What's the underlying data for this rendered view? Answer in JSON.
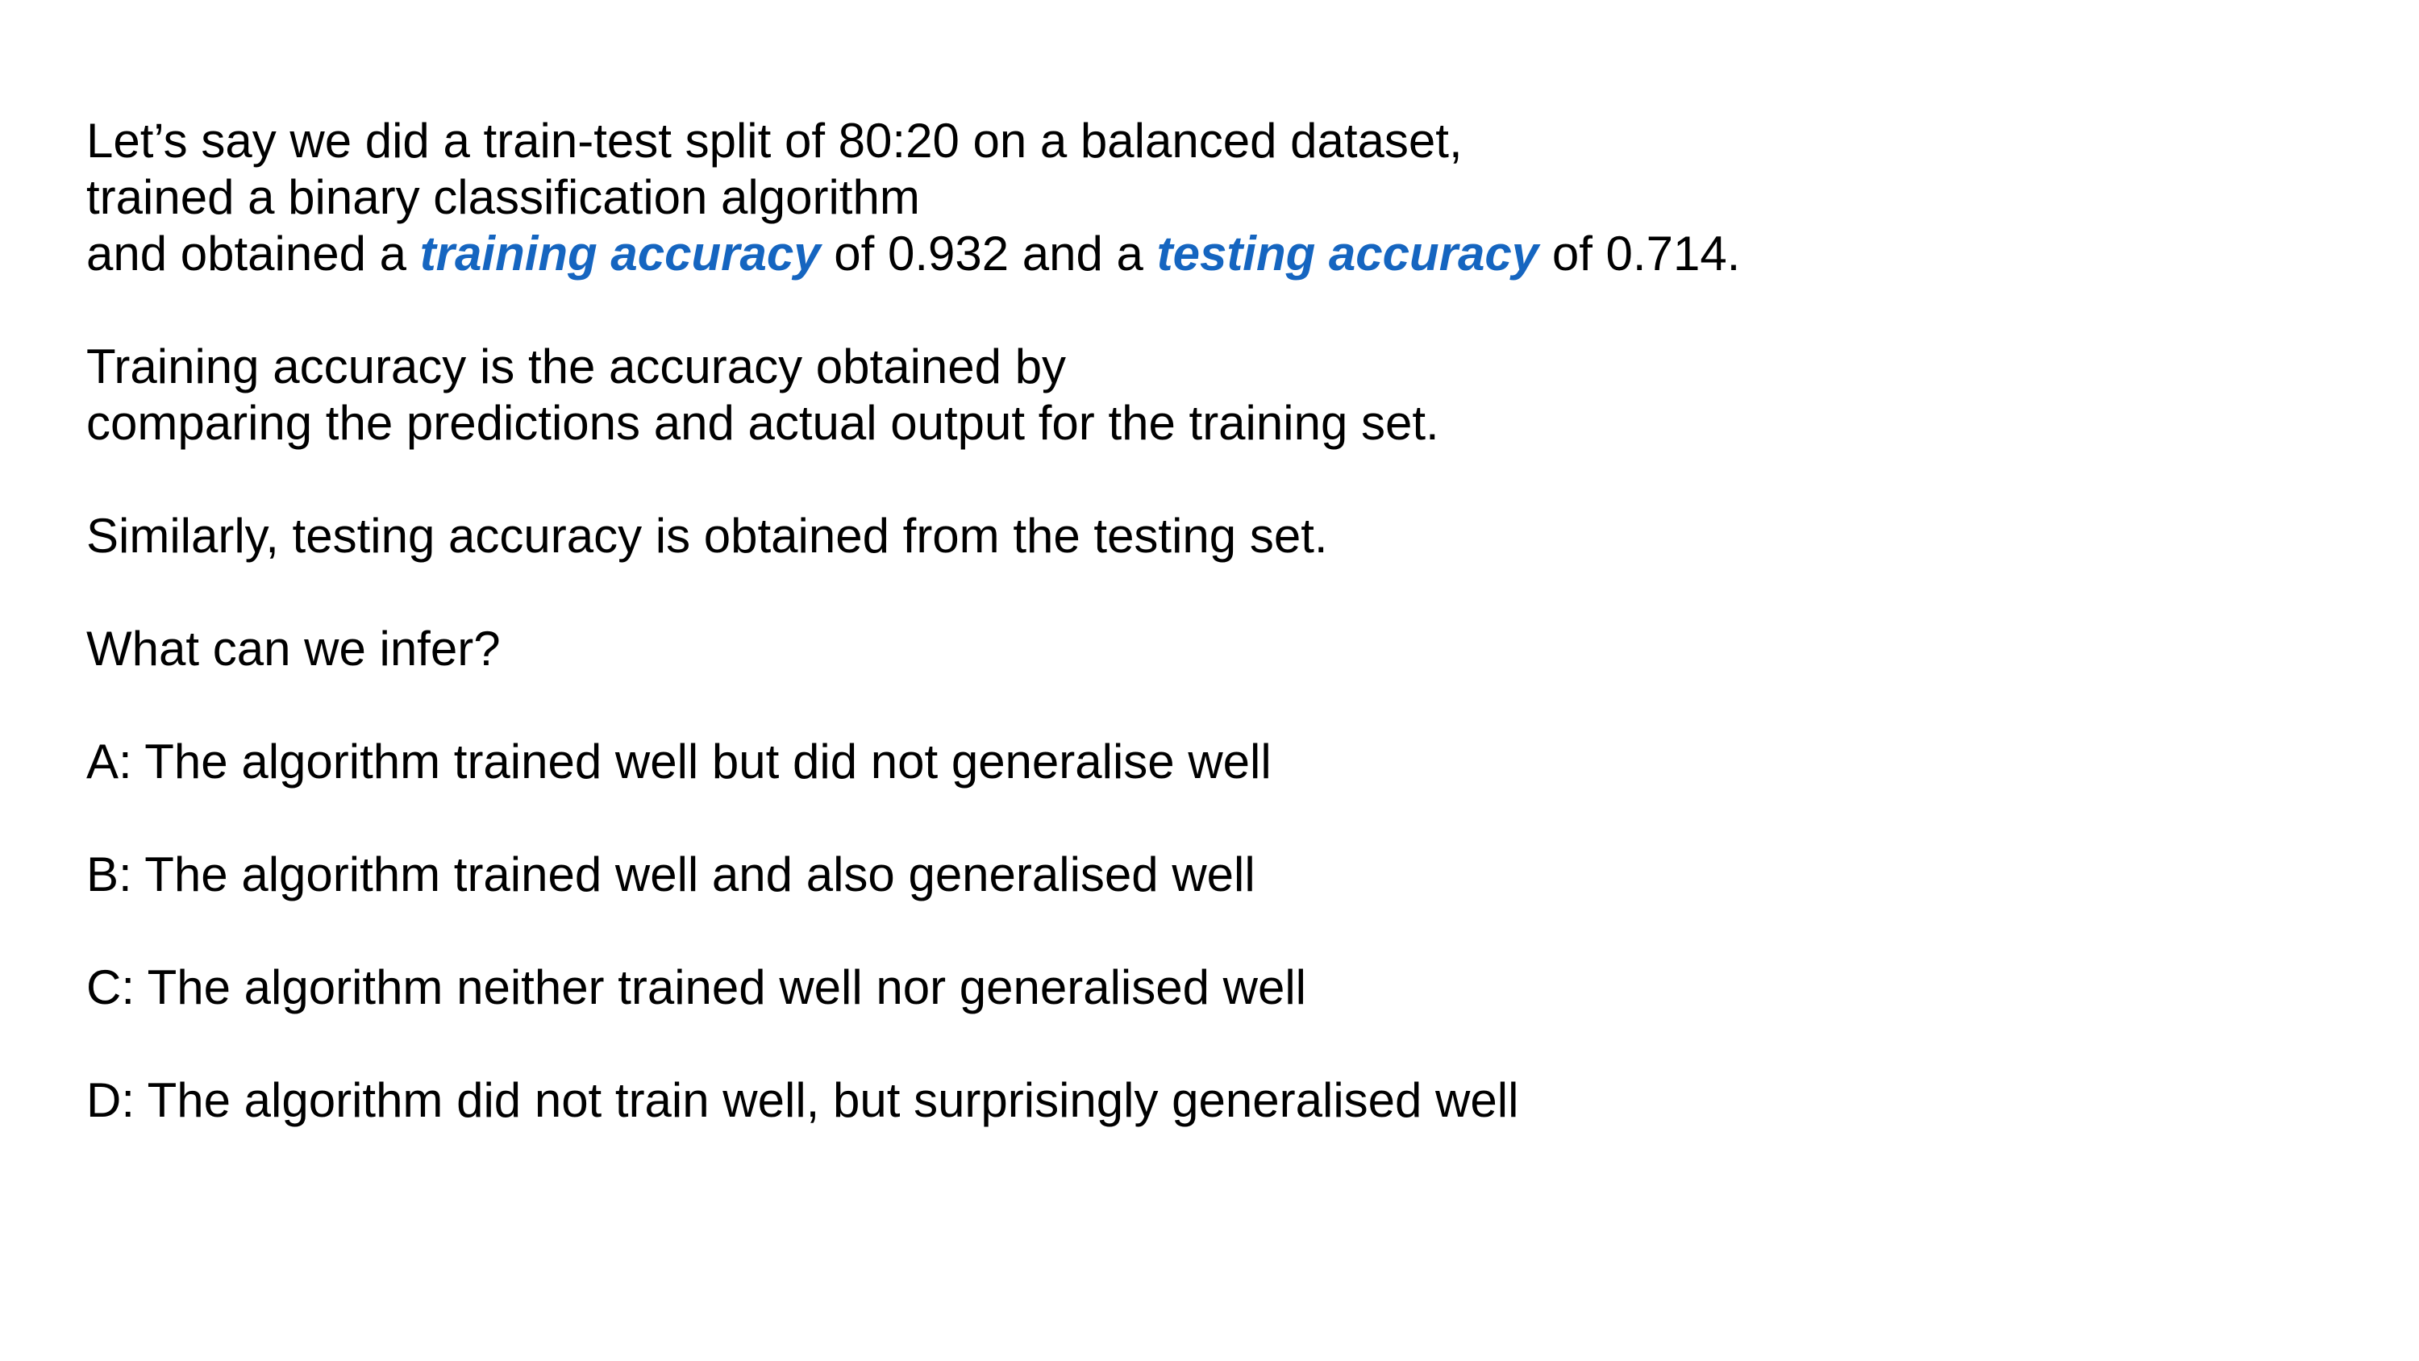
{
  "intro": {
    "line1": "Let’s say we did a train-test split of 80:20 on a balanced dataset,",
    "line2": "trained a binary classification algorithm",
    "line3_a": "and obtained a ",
    "line3_term1": "training accuracy",
    "line3_b": " of 0.932 and a ",
    "line3_term2": "testing accuracy",
    "line3_c": " of 0.714."
  },
  "definition": {
    "line1": "Training accuracy is the accuracy obtained by",
    "line2": "comparing the predictions and actual output for the training set."
  },
  "similarly": "Similarly, testing accuracy is obtained from the testing set.",
  "question": "What can we infer?",
  "options": {
    "a": "A: The algorithm trained well but did not generalise well",
    "b": "B: The algorithm trained well and also generalised well",
    "c": "C: The algorithm neither trained well nor generalised well",
    "d": "D: The algorithm did not train well, but surprisingly generalised well"
  },
  "colors": {
    "highlight": "#1565c0",
    "text": "#000000",
    "background": "#ffffff"
  }
}
